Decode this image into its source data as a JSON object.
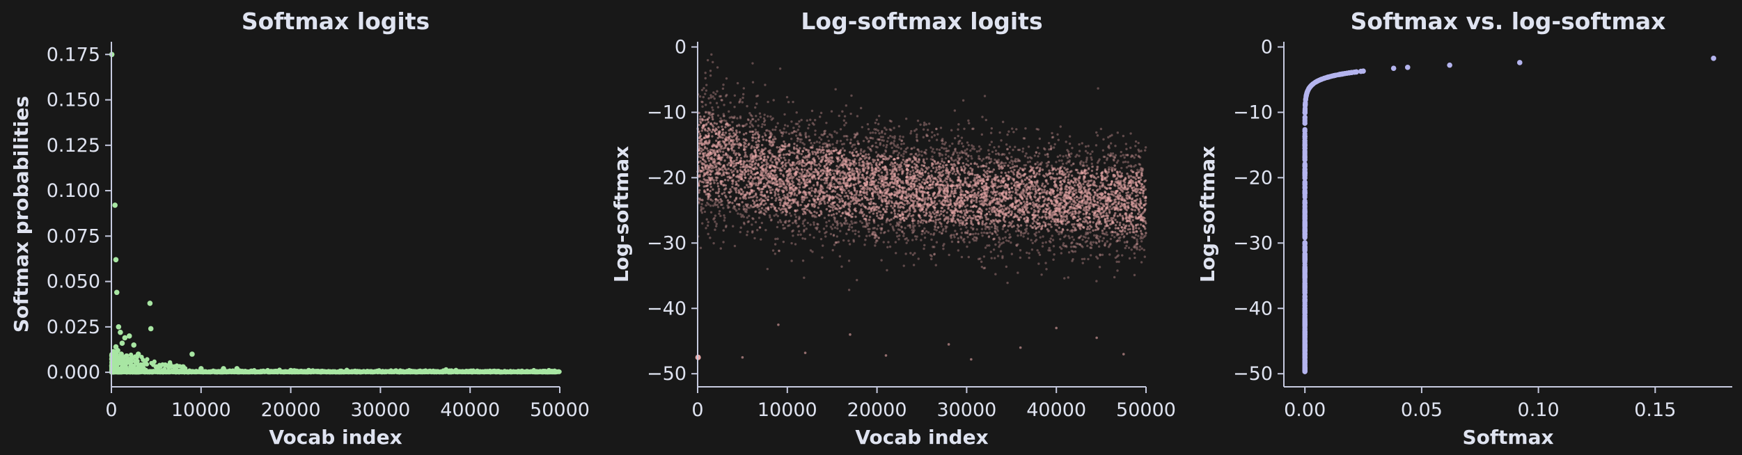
{
  "background": "#181818",
  "text_color": "#dfe3f0",
  "chart_data": [
    {
      "id": "softmax",
      "type": "scatter",
      "title": "Softmax logits",
      "xlabel": "Vocab index",
      "ylabel": "Softmax probabilities",
      "xlim": [
        0,
        50000
      ],
      "ylim": [
        -0.008,
        0.182
      ],
      "xticks": [
        0,
        10000,
        20000,
        30000,
        40000,
        50000
      ],
      "xtick_labels": [
        "0",
        "10000",
        "20000",
        "30000",
        "40000",
        "50000"
      ],
      "yticks": [
        0.0,
        0.025,
        0.05,
        0.075,
        0.1,
        0.125,
        0.15,
        0.175
      ],
      "ytick_labels": [
        "0.000",
        "0.025",
        "0.050",
        "0.075",
        "0.100",
        "0.125",
        "0.150",
        "0.175"
      ],
      "grid": false,
      "color": "#a8e6a3",
      "series": [
        {
          "x": [
            50,
            400,
            500,
            600,
            800,
            1000,
            1200,
            1500,
            2000,
            2500,
            3000,
            4300,
            4400,
            9000,
            500,
            700,
            900,
            1100,
            1300,
            1700,
            2200,
            2700,
            3500,
            3800,
            5000,
            6000,
            7000,
            8000,
            10000,
            12500,
            14000,
            20000,
            22000
          ],
          "y": [
            0.175,
            0.092,
            0.062,
            0.044,
            0.025,
            0.022,
            0.016,
            0.019,
            0.02,
            0.015,
            0.01,
            0.038,
            0.024,
            0.01,
            0.014,
            0.012,
            0.008,
            0.01,
            0.007,
            0.009,
            0.006,
            0.006,
            0.004,
            0.005,
            0.003,
            0.004,
            0.003,
            0.003,
            0.002,
            0.002,
            0.002,
            0.001,
            0.001
          ]
        }
      ]
    },
    {
      "id": "log-softmax",
      "type": "scatter",
      "title": "Log-softmax logits",
      "xlabel": "Vocab index",
      "ylabel": "Log-softmax",
      "xlim": [
        0,
        50000
      ],
      "ylim": [
        -52,
        0.8
      ],
      "xticks": [
        0,
        10000,
        20000,
        30000,
        40000,
        50000
      ],
      "xtick_labels": [
        "0",
        "10000",
        "20000",
        "30000",
        "40000",
        "50000"
      ],
      "yticks": [
        0,
        -10,
        -20,
        -30,
        -40,
        -50
      ],
      "ytick_labels": [
        "0",
        "−10",
        "−20",
        "−30",
        "−40",
        "−50"
      ],
      "grid": false,
      "color": "#e8a8a8",
      "trend": {
        "x": [
          0,
          10000,
          20000,
          30000,
          40000,
          50000
        ],
        "mean": [
          -16.5,
          -20.0,
          -21.5,
          -22.5,
          -23.2,
          -23.8
        ],
        "spread": [
          5.5,
          4.5,
          4.2,
          4.0,
          4.0,
          4.0
        ]
      },
      "outliers": {
        "x": [
          5000,
          12000,
          21000,
          28000,
          30500,
          36000,
          44500,
          47500,
          9000,
          17000,
          40000
        ],
        "y": [
          -47.5,
          -46.8,
          -47.2,
          -45.5,
          -47.8,
          -46.0,
          -44.5,
          -47.0,
          -42.5,
          -44.0,
          -43.0
        ]
      }
    },
    {
      "id": "softmax-vs-log-softmax",
      "type": "scatter",
      "title": "Softmax vs. log-softmax",
      "xlabel": "Softmax",
      "ylabel": "Log-softmax",
      "xlim": [
        -0.009,
        0.183
      ],
      "ylim": [
        -52,
        0.8
      ],
      "xticks": [
        0.0,
        0.05,
        0.1,
        0.15
      ],
      "xtick_labels": [
        "0.00",
        "0.05",
        "0.10",
        "0.15"
      ],
      "yticks": [
        0,
        -10,
        -20,
        -30,
        -40,
        -50
      ],
      "ytick_labels": [
        "0",
        "−10",
        "−20",
        "−30",
        "−40",
        "−50"
      ],
      "grid": false,
      "color": "#b4b4ee",
      "highlight_points": {
        "x": [
          0.175,
          0.092,
          0.062,
          0.044,
          0.038,
          0.025,
          0.024,
          0.022,
          0.02,
          0.019,
          0.016,
          0.015,
          0.01
        ],
        "y": [
          -1.74,
          -2.39,
          -2.78,
          -3.12,
          -3.27,
          -3.69,
          -3.73,
          -3.82,
          -3.91,
          -3.96,
          -4.14,
          -4.2,
          -4.61
        ]
      }
    }
  ]
}
